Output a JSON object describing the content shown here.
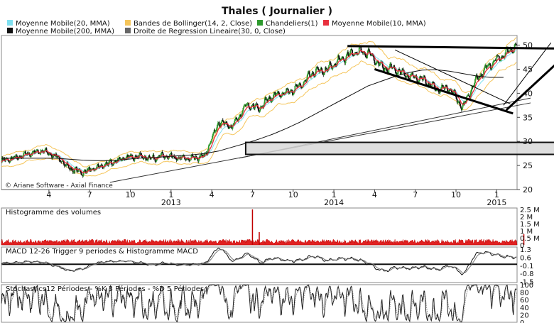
{
  "chart_data": {
    "type": "line",
    "title": "Thales  ( Journalier )",
    "watermark": "© Ariane Software - Axial Finance",
    "legend": [
      {
        "label": "Moyenne Mobile(20, MMA)",
        "color": "#7fe0f0"
      },
      {
        "label": "Bandes de Bollinger(14, 2, Close)",
        "color": "#f5c55a"
      },
      {
        "label": "Chandeliers(1)",
        "color": "#2e9a2e"
      },
      {
        "label": "Moyenne Mobile(10, MMA)",
        "color": "#e8303e"
      },
      {
        "label": "Moyenne Mobile(200, MMA)",
        "color": "#111111"
      },
      {
        "label": "Droite de Regression Lineaire(30, 0, Close)",
        "color": "#666666"
      }
    ],
    "x_tick_labels": [
      "4",
      "7",
      "10",
      "1",
      "4",
      "7",
      "10",
      "1",
      "4",
      "7",
      "10",
      "1"
    ],
    "x_year_labels": [
      "2013",
      "2014",
      "2015"
    ],
    "year_label_ticks": [
      3,
      7,
      11
    ],
    "x_tick_pos": [
      0.5,
      3.5,
      6.5,
      9.5,
      12.5,
      15.5,
      18.5,
      21.5,
      24.5,
      27.5,
      30.5,
      33.5
    ],
    "month_range": [
      -3,
      35
    ],
    "price": {
      "ylim": [
        20,
        52
      ],
      "yticks": [
        20,
        25,
        30,
        35,
        40,
        45,
        50
      ],
      "close_monthly": [
        26,
        26.5,
        27.5,
        28,
        27,
        24.5,
        23.5,
        24.5,
        25.5,
        26.5,
        27,
        26.5,
        27,
        26.5,
        26.5,
        27,
        34,
        33,
        37.5,
        37,
        39.5,
        40,
        41.5,
        44.5,
        45,
        47,
        48.5,
        48.5,
        45.5,
        45,
        43.5,
        43,
        41,
        41,
        37,
        43,
        46,
        48
      ],
      "ma200_monthly": [
        26.5,
        26.5,
        26.5,
        26.5,
        26.5,
        26.3,
        26.1,
        26,
        26,
        26.2,
        26.5,
        26.6,
        26.8,
        27,
        27.2,
        27.5,
        28,
        28.8,
        29.6,
        30.5,
        31.5,
        32.7,
        34,
        35.5,
        37,
        38.5,
        40,
        41.5,
        42.5,
        43.5,
        44.3,
        44.8,
        44.9,
        44.6,
        44.1,
        43.6,
        43.3,
        43.3
      ],
      "ma200_start": -3,
      "regression_lines": [
        {
          "x1": 5,
          "y1": 21.5,
          "x2": 36,
          "y2": 38
        },
        {
          "x1": 14.5,
          "y1": 26.5,
          "x2": 36,
          "y2": 39
        }
      ],
      "support_zone": {
        "x1": 15,
        "x2": 40,
        "y_low": 27.3,
        "y_high": 29.8
      },
      "trendlines": [
        {
          "x1": 22.5,
          "y1": 49.8,
          "x2": 37.8,
          "y2": 49.3
        },
        {
          "x1": 24.5,
          "y1": 45,
          "x2": 34.7,
          "y2": 35.8
        },
        {
          "x1": 34.2,
          "y1": 36.5,
          "x2": 38.8,
          "y2": 48.5
        },
        {
          "x1": 26,
          "y1": 49,
          "x2": 34.5,
          "y2": 37.8
        },
        {
          "x1": 34,
          "y1": 37.5,
          "x2": 37.5,
          "y2": 50.5
        }
      ]
    },
    "volume": {
      "title": "Histogramme des volumes",
      "ytick_labels": [
        "2.5 M",
        "2 M",
        "1.5 M",
        "1 M",
        "0.5 M",
        "0"
      ],
      "ytick_values": [
        2.5,
        2,
        1.5,
        1,
        0.5,
        0
      ],
      "ylim": [
        0,
        2.6
      ],
      "typical_level": 0.25,
      "spikes": [
        {
          "month": 15.5,
          "value": 2.5
        },
        {
          "month": 16,
          "value": 0.9
        },
        {
          "month": 35.5,
          "value": 0.75
        }
      ]
    },
    "macd": {
      "title": "MACD 12-26   Trigger 9 periodes & Histogramme MACD",
      "ytick_labels": [
        "1.3",
        "0.6",
        "-0.1",
        "-0.8",
        "-1.5"
      ],
      "ytick_values": [
        1.3,
        0.6,
        -0.1,
        -0.8,
        -1.5
      ],
      "ylim": [
        -1.6,
        1.5
      ],
      "zero_line": 0
    },
    "stochastics": {
      "title": "Stochastics12 Périodes  -  %K 3 Périodes  -  %D 5 Périodes",
      "ytick_labels": [
        "100",
        "80",
        "60",
        "40",
        "20",
        "0"
      ],
      "ytick_values": [
        100,
        80,
        60,
        40,
        20,
        0
      ],
      "ylim": [
        0,
        100
      ]
    }
  }
}
